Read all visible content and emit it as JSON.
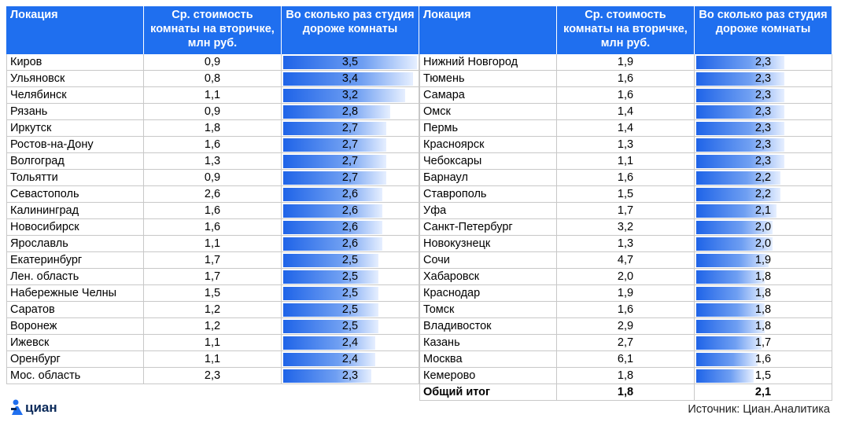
{
  "tables": [
    {
      "header": [
        "Локация",
        "Ср. стоимость комнаты на вторичке, млн руб.",
        "Во сколько раз студия дороже комнаты"
      ],
      "rows": [
        [
          "Киров",
          "0,9",
          {
            "value": 3.5,
            "label": "3,5"
          }
        ],
        [
          "Ульяновск",
          "0,8",
          {
            "value": 3.4,
            "label": "3,4"
          }
        ],
        [
          "Челябинск",
          "1,1",
          {
            "value": 3.2,
            "label": "3,2"
          }
        ],
        [
          "Рязань",
          "0,9",
          {
            "value": 2.8,
            "label": "2,8"
          }
        ],
        [
          "Иркутск",
          "1,8",
          {
            "value": 2.7,
            "label": "2,7"
          }
        ],
        [
          "Ростов-на-Дону",
          "1,6",
          {
            "value": 2.7,
            "label": "2,7"
          }
        ],
        [
          "Волгоград",
          "1,3",
          {
            "value": 2.7,
            "label": "2,7"
          }
        ],
        [
          "Тольятти",
          "0,9",
          {
            "value": 2.7,
            "label": "2,7"
          }
        ],
        [
          "Севастополь",
          "2,6",
          {
            "value": 2.6,
            "label": "2,6"
          }
        ],
        [
          "Калининград",
          "1,6",
          {
            "value": 2.6,
            "label": "2,6"
          }
        ],
        [
          "Новосибирск",
          "1,6",
          {
            "value": 2.6,
            "label": "2,6"
          }
        ],
        [
          "Ярославль",
          "1,1",
          {
            "value": 2.6,
            "label": "2,6"
          }
        ],
        [
          "Екатеринбург",
          "1,7",
          {
            "value": 2.5,
            "label": "2,5"
          }
        ],
        [
          "Лен. область",
          "1,7",
          {
            "value": 2.5,
            "label": "2,5"
          }
        ],
        [
          "Набережные Челны",
          "1,5",
          {
            "value": 2.5,
            "label": "2,5"
          }
        ],
        [
          "Саратов",
          "1,2",
          {
            "value": 2.5,
            "label": "2,5"
          }
        ],
        [
          "Воронеж",
          "1,2",
          {
            "value": 2.5,
            "label": "2,5"
          }
        ],
        [
          "Ижевск",
          "1,1",
          {
            "value": 2.4,
            "label": "2,4"
          }
        ],
        [
          "Оренбург",
          "1,1",
          {
            "value": 2.4,
            "label": "2,4"
          }
        ],
        [
          "Мос. область",
          "2,3",
          {
            "value": 2.3,
            "label": "2,3"
          }
        ]
      ]
    },
    {
      "header": [
        "Локация",
        "Ср. стоимость комнаты на вторичке, млн руб.",
        "Во сколько раз студия дороже комнаты"
      ],
      "rows": [
        [
          "Нижний Новгород",
          "1,9",
          {
            "value": 2.3,
            "label": "2,3"
          }
        ],
        [
          "Тюмень",
          "1,6",
          {
            "value": 2.3,
            "label": "2,3"
          }
        ],
        [
          "Самара",
          "1,6",
          {
            "value": 2.3,
            "label": "2,3"
          }
        ],
        [
          "Омск",
          "1,4",
          {
            "value": 2.3,
            "label": "2,3"
          }
        ],
        [
          "Пермь",
          "1,4",
          {
            "value": 2.3,
            "label": "2,3"
          }
        ],
        [
          "Красноярск",
          "1,3",
          {
            "value": 2.3,
            "label": "2,3"
          }
        ],
        [
          "Чебоксары",
          "1,1",
          {
            "value": 2.3,
            "label": "2,3"
          }
        ],
        [
          "Барнаул",
          "1,6",
          {
            "value": 2.2,
            "label": "2,2"
          }
        ],
        [
          "Ставрополь",
          "1,5",
          {
            "value": 2.2,
            "label": "2,2"
          }
        ],
        [
          "Уфа",
          "1,7",
          {
            "value": 2.1,
            "label": "2,1"
          }
        ],
        [
          "Санкт-Петербург",
          "3,2",
          {
            "value": 2.0,
            "label": "2,0"
          }
        ],
        [
          "Новокузнецк",
          "1,3",
          {
            "value": 2.0,
            "label": "2,0"
          }
        ],
        [
          "Сочи",
          "4,7",
          {
            "value": 1.9,
            "label": "1,9"
          }
        ],
        [
          "Хабаровск",
          "2,0",
          {
            "value": 1.8,
            "label": "1,8"
          }
        ],
        [
          "Краснодар",
          "1,9",
          {
            "value": 1.8,
            "label": "1,8"
          }
        ],
        [
          "Томск",
          "1,6",
          {
            "value": 1.8,
            "label": "1,8"
          }
        ],
        [
          "Владивосток",
          "2,9",
          {
            "value": 1.8,
            "label": "1,8"
          }
        ],
        [
          "Казань",
          "2,7",
          {
            "value": 1.7,
            "label": "1,7"
          }
        ],
        [
          "Москва",
          "6,1",
          {
            "value": 1.6,
            "label": "1,6"
          }
        ],
        [
          "Кемерово",
          "1,8",
          {
            "value": 1.5,
            "label": "1,5"
          }
        ]
      ],
      "total": [
        "Общий итог",
        "1,8",
        "2,1"
      ]
    }
  ],
  "logo": "циан",
  "source": "Источник: Циан.Аналитика"
}
